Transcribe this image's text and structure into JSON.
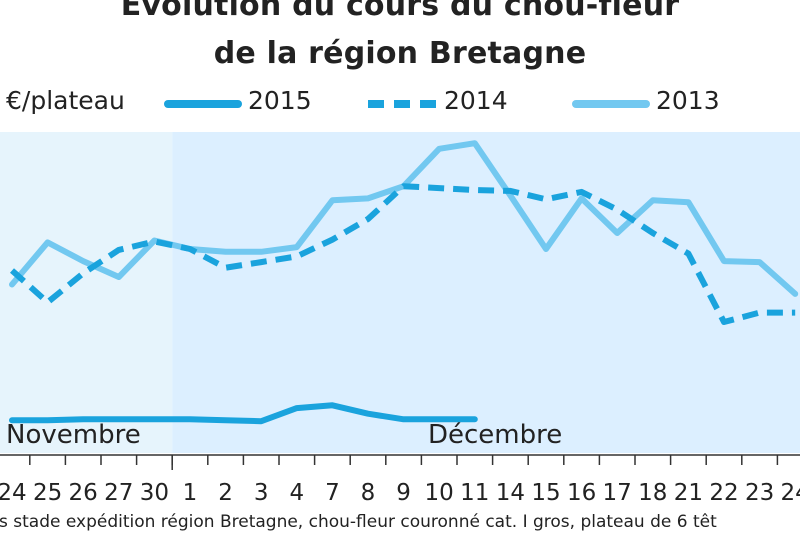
{
  "chart_data": {
    "type": "line",
    "title": "Evolution du cours du chou-fleur",
    "subtitle": "de la région Bretagne",
    "unit": "€/plateau",
    "months": [
      {
        "label": "Novembre",
        "from": "24",
        "to": "30"
      },
      {
        "label": "Décembre",
        "from": "1",
        "to": "24"
      }
    ],
    "categories": [
      "24",
      "25",
      "26",
      "27",
      "30",
      "1",
      "2",
      "3",
      "4",
      "7",
      "8",
      "9",
      "10",
      "11",
      "14",
      "15",
      "16",
      "17",
      "18",
      "21",
      "22",
      "23",
      "24"
    ],
    "series": [
      {
        "name": "2015",
        "color": "#1aa3dd",
        "style": "solid",
        "values": [
          0.35,
          0.35,
          0.36,
          0.36,
          0.36,
          0.36,
          0.35,
          0.34,
          0.48,
          0.51,
          0.42,
          0.36,
          0.36,
          0.36,
          null,
          null,
          null,
          null,
          null,
          null,
          null,
          null,
          null
        ]
      },
      {
        "name": "2014",
        "color": "#1aa3dd",
        "style": "dashed",
        "values": [
          1.95,
          1.61,
          1.92,
          2.17,
          2.26,
          2.18,
          1.98,
          2.04,
          2.1,
          2.28,
          2.5,
          2.85,
          2.83,
          2.81,
          2.8,
          2.71,
          2.79,
          2.6,
          2.35,
          2.13,
          1.4,
          1.5,
          1.5
        ]
      },
      {
        "name": "2013",
        "color": "#72c8f0",
        "style": "solid",
        "values": [
          1.8,
          2.25,
          2.05,
          1.88,
          2.27,
          2.18,
          2.15,
          2.15,
          2.2,
          2.7,
          2.72,
          2.85,
          3.25,
          3.31,
          2.75,
          2.18,
          2.72,
          2.35,
          2.7,
          2.68,
          2.05,
          2.04,
          1.7
        ]
      }
    ],
    "x_labels_visible": [
      "24",
      "25",
      "26",
      "27",
      "30",
      "1",
      "2",
      "3",
      "4",
      "7",
      "8",
      "9",
      "10",
      "11",
      "14",
      "15",
      "16",
      "17",
      "18",
      "21",
      "22",
      "23",
      "24"
    ],
    "ylim": [
      0,
      3.6
    ],
    "grid": false,
    "legend_position": "top",
    "background_colors": {
      "november": "#e6f4fc",
      "december": "#dcefff"
    },
    "source": "rs stade expédition région Bretagne, chou-fleur couronné cat. I gros, plateau de 6 têt"
  }
}
